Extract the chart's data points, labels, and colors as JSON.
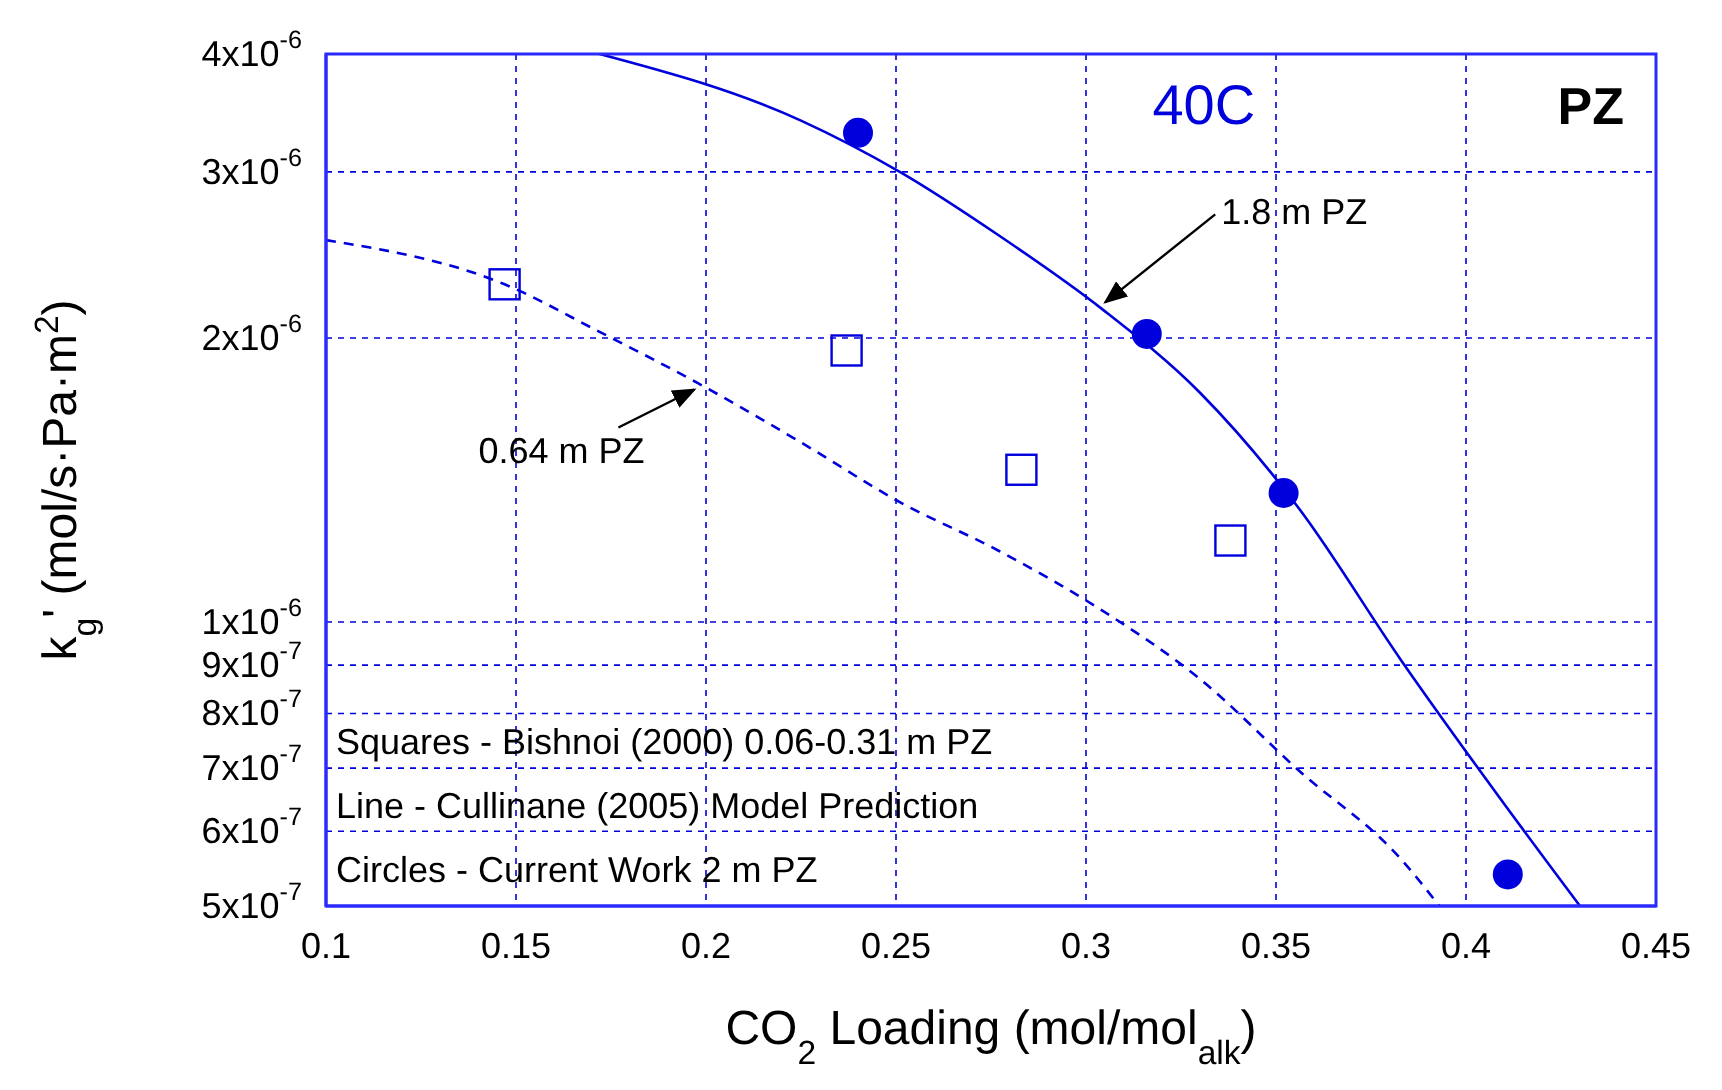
{
  "chart_data": {
    "type": "scatter",
    "xlabel": "CO$_{2}$ Loading (mol/mol$_{alk}$)",
    "ylabel": "k$_{g}$' (mol/s·Pa·m$^{2}$)",
    "log": "y",
    "grid": true,
    "xlim": [
      0.1,
      0.45
    ],
    "xticks": [
      0.1,
      0.15,
      0.2,
      0.25,
      0.3,
      0.35,
      0.4,
      0.45
    ],
    "ylim": [
      5e-07,
      4e-06
    ],
    "yticks": [
      {
        "value": 5e-07,
        "label": "5x10$^{-7}$"
      },
      {
        "value": 6e-07,
        "label": "6x10$^{-7}$"
      },
      {
        "value": 7e-07,
        "label": "7x10$^{-7}$"
      },
      {
        "value": 8e-07,
        "label": "8x10$^{-7}$"
      },
      {
        "value": 9e-07,
        "label": "9x10$^{-7}$"
      },
      {
        "value": 1e-06,
        "label": "1x10$^{-6}$"
      },
      {
        "value": 2e-06,
        "label": "2x10$^{-6}$"
      },
      {
        "value": 3e-06,
        "label": "3x10$^{-6}$"
      },
      {
        "value": 4e-06,
        "label": "4x10$^{-6}$"
      }
    ],
    "series": [
      {
        "marker": "circle",
        "color": "#0000dd",
        "x": [
          0.24,
          0.316,
          0.352,
          0.411
        ],
        "values": [
          3.3e-06,
          2.02e-06,
          1.37e-06,
          5.4e-07
        ]
      },
      {
        "marker": "square",
        "color": "#0000dd",
        "x": [
          0.147,
          0.237,
          0.283,
          0.338
        ],
        "values": [
          2.28e-06,
          1.94e-06,
          1.45e-06,
          1.22e-06
        ]
      },
      {
        "type": "line",
        "line_style": "solid",
        "marker": "none",
        "color": "#0000dd",
        "x": [
          0.172,
          0.225,
          0.251,
          0.277,
          0.304,
          0.33,
          0.356,
          0.383,
          0.409,
          0.43
        ],
        "values": [
          4e-06,
          3.4e-06,
          3e-06,
          2.57e-06,
          2.15e-06,
          1.75e-06,
          1.32e-06,
          9.1e-07,
          6.5e-07,
          5e-07
        ]
      },
      {
        "type": "line",
        "line_style": "dashed",
        "marker": "none",
        "color": "#0000dd",
        "x": [
          0.1,
          0.147,
          0.172,
          0.198,
          0.225,
          0.251,
          0.277,
          0.304,
          0.33,
          0.356,
          0.383,
          0.393
        ],
        "values": [
          2.54e-06,
          2.28e-06,
          2.03e-06,
          1.79e-06,
          1.55e-06,
          1.34e-06,
          1.19e-06,
          1.03e-06,
          8.7e-07,
          6.96e-07,
          5.6e-07,
          5e-07
        ]
      }
    ],
    "annotations": [
      "40C",
      "PZ",
      {
        "text": "1.8 m PZ",
        "x": 0.304,
        "y": 2.15e-06
      },
      {
        "text": "0.64 m PZ",
        "x": 0.198,
        "y": 1.79e-06
      },
      "Squares - Bishnoi (2000)  0.06-0.31 m PZ",
      "Line - Cullinane (2005) Model Prediction",
      "Circles - Current Work  2 m PZ"
    ]
  }
}
